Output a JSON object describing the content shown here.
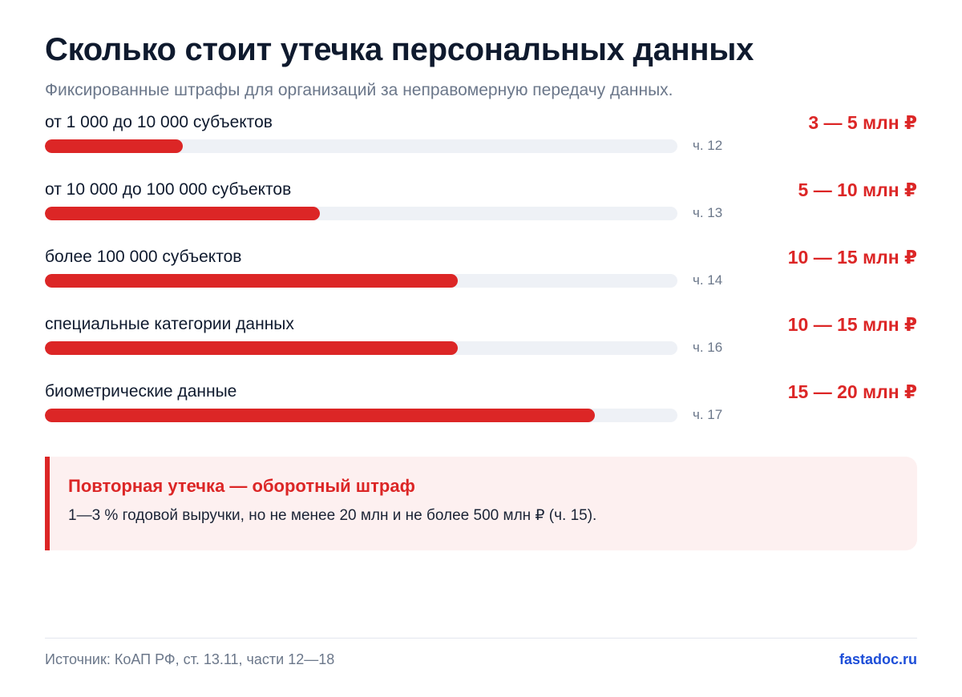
{
  "header": {
    "title": "Сколько стоит утечка персональных данных",
    "subtitle": "Фиксированные штрафы для организаций за неправомерную передачу данных."
  },
  "chart_data": {
    "type": "bar",
    "orientation": "horizontal",
    "categories": [
      "от 1 000 до 10 000 субъектов",
      "от 10 000 до 100 000 субъектов",
      "более 100 000 субъектов",
      "специальные категории данных",
      "биометрические данные"
    ],
    "values": [
      5,
      10,
      15,
      15,
      20
    ],
    "xlim": [
      0,
      23
    ],
    "value_labels": [
      "3 — 5 млн ₽",
      "5 — 10 млн ₽",
      "10 — 15 млн ₽",
      "10 — 15 млн ₽",
      "15 — 20 млн ₽"
    ],
    "part_labels": [
      "ч. 12",
      "ч. 13",
      "ч. 14",
      "ч. 16",
      "ч. 17"
    ],
    "bar_color": "#dc2626",
    "track_color": "#eef1f6",
    "grid": false,
    "legend": "none"
  },
  "callout": {
    "title": "Повторная утечка — оборотный штраф",
    "text": "1—3 % годовой выручки, но не менее 20 млн и не более 500 млн ₽ (ч. 15)."
  },
  "footer": {
    "source": "Источник: КоАП РФ, ст. 13.11, части 12—18",
    "site": "fastadoc.ru"
  },
  "colors": {
    "accent": "#dc2626",
    "title": "#0f1a2e",
    "muted": "#6b778a",
    "link": "#1d4ed8",
    "callout_bg": "#fdf0f0"
  }
}
